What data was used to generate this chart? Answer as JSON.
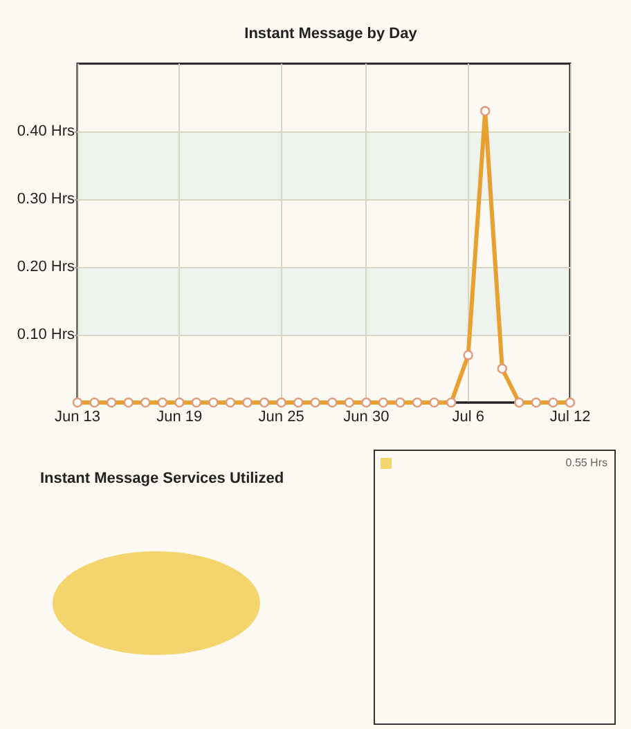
{
  "chart_data": [
    {
      "type": "line",
      "title": "Instant Message by Day",
      "categories": [
        "Jun 13",
        null,
        null,
        null,
        null,
        null,
        "Jun 19",
        null,
        null,
        null,
        null,
        null,
        "Jun 25",
        null,
        null,
        null,
        null,
        "Jun 30",
        null,
        null,
        null,
        null,
        null,
        "Jul 6",
        null,
        null,
        null,
        null,
        null,
        "Jul 12"
      ],
      "values": [
        0,
        0,
        0,
        0,
        0,
        0,
        0,
        0,
        0,
        0,
        0,
        0,
        0,
        0,
        0,
        0,
        0,
        0,
        0,
        0,
        0,
        0,
        0,
        0.07,
        0.43,
        0.05,
        0,
        0,
        0,
        0
      ],
      "color": "#e8a030",
      "ylim": [
        0,
        0.5
      ],
      "yticks": [
        {
          "value": 0.1,
          "label": "0.10 Hrs"
        },
        {
          "value": 0.2,
          "label": "0.20 Hrs"
        },
        {
          "value": 0.3,
          "label": "0.30 Hrs"
        },
        {
          "value": 0.4,
          "label": "0.40 Hrs"
        }
      ],
      "grid": true,
      "marker": "circle"
    },
    {
      "type": "pie",
      "title": "Instant Message Services Utilized",
      "categories": [
        null
      ],
      "values": [
        100
      ],
      "colors": [
        "#f4d46c"
      ],
      "annotations": [
        "0.55 Hrs"
      ]
    }
  ]
}
